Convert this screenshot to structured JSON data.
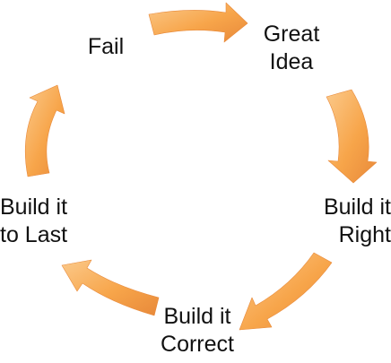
{
  "diagram": {
    "arrow_color": "#f7a54a",
    "arrow_color_dark": "#e8893a",
    "arrow_color_light": "#fbc98a",
    "nodes": {
      "fail": {
        "lines": [
          "Fail"
        ]
      },
      "great_idea": {
        "lines": [
          "Great",
          "Idea"
        ]
      },
      "build_right": {
        "lines": [
          "Build it",
          "Right"
        ]
      },
      "build_correct": {
        "lines": [
          "Build it",
          "Correct"
        ]
      },
      "build_last": {
        "lines": [
          "Build it",
          "to Last"
        ]
      }
    }
  }
}
